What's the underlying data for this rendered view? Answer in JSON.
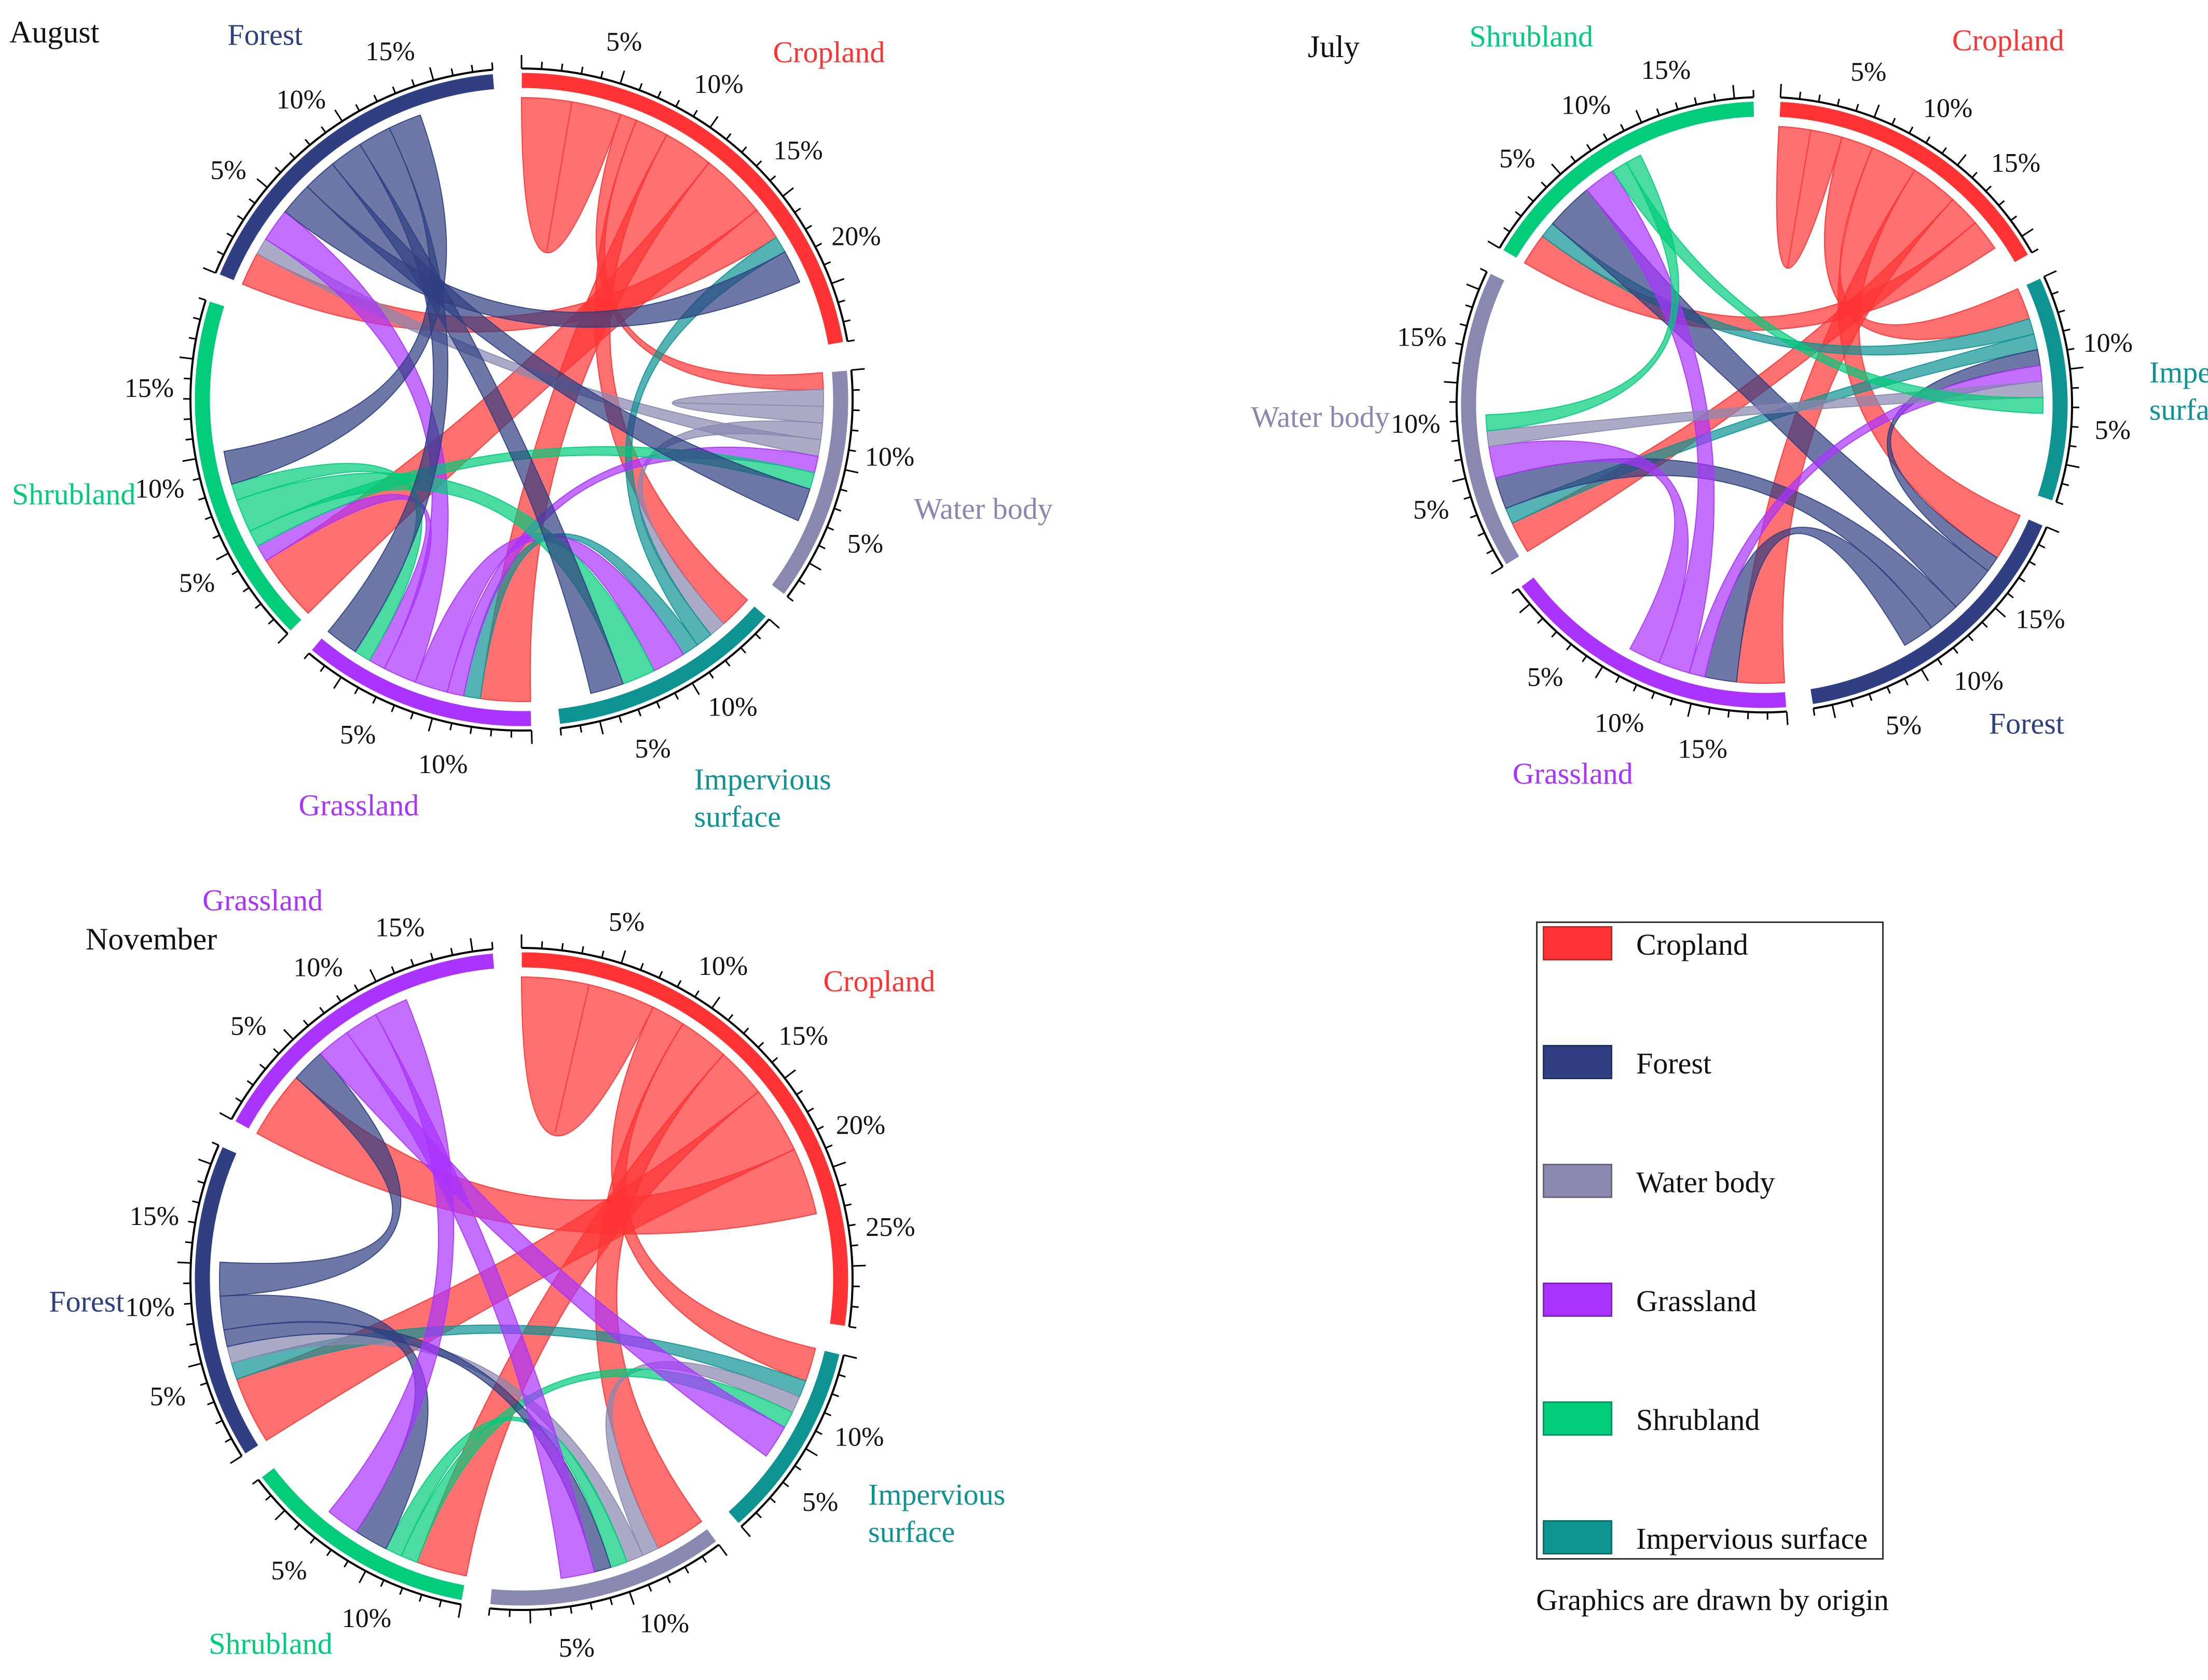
{
  "chart_data": [
    {
      "type": "chord",
      "title": "August",
      "categories": [
        {
          "name": "Cropland",
          "label_lines": [
            "Cropland"
          ],
          "color": "#ff3333",
          "total_pct": 23,
          "ticks": [
            "5%",
            "10%",
            "15%",
            "20%"
          ]
        },
        {
          "name": "Water body",
          "label_lines": [
            "Water body"
          ],
          "color": "#8888b0",
          "total_pct": 12,
          "ticks": [
            "10%",
            "5%"
          ]
        },
        {
          "name": "Impervious surface",
          "label_lines": [
            "Impervious",
            "surface"
          ],
          "color": "#0e9393",
          "total_pct": 12,
          "ticks": [
            "10%",
            "5%"
          ]
        },
        {
          "name": "Grassland",
          "label_lines": [
            "Grassland"
          ],
          "color": "#aa33ff",
          "total_pct": 12,
          "ticks": [
            "10%",
            "5%"
          ]
        },
        {
          "name": "Shrubland",
          "label_lines": [
            "Shrubland"
          ],
          "color": "#00cc7a",
          "total_pct": 18,
          "ticks": [
            "5%",
            "10%",
            "15%"
          ]
        },
        {
          "name": "Forest",
          "label_lines": [
            "Forest"
          ],
          "color": "#2f3f82",
          "total_pct": 18,
          "ticks": [
            "5%",
            "10%",
            "15%"
          ]
        }
      ],
      "flows": [
        {
          "from": "Cropland",
          "to": "Cropland",
          "value": 3
        },
        {
          "from": "Cropland",
          "to": "Water body",
          "value": 1
        },
        {
          "from": "Cropland",
          "to": "Impervious surface",
          "value": 2
        },
        {
          "from": "Cropland",
          "to": "Grassland",
          "value": 3
        },
        {
          "from": "Cropland",
          "to": "Shrubland",
          "value": 4
        },
        {
          "from": "Cropland",
          "to": "Forest",
          "value": 2
        },
        {
          "from": "Water body",
          "to": "Water body",
          "value": 1
        },
        {
          "from": "Water body",
          "to": "Impervious surface",
          "value": 1
        },
        {
          "from": "Water body",
          "to": "Forest",
          "value": 1
        },
        {
          "from": "Impervious surface",
          "to": "Cropland",
          "value": 1
        },
        {
          "from": "Impervious surface",
          "to": "Grassland",
          "value": 1
        },
        {
          "from": "Grassland",
          "to": "Water body",
          "value": 1
        },
        {
          "from": "Grassland",
          "to": "Impervious surface",
          "value": 2
        },
        {
          "from": "Grassland",
          "to": "Forest",
          "value": 2
        },
        {
          "from": "Grassland",
          "to": "Shrubland",
          "value": 1
        },
        {
          "from": "Shrubland",
          "to": "Water body",
          "value": 1
        },
        {
          "from": "Shrubland",
          "to": "Impervious surface",
          "value": 2
        },
        {
          "from": "Shrubland",
          "to": "Grassland",
          "value": 1
        },
        {
          "from": "Forest",
          "to": "Cropland",
          "value": 2
        },
        {
          "from": "Forest",
          "to": "Water body",
          "value": 2
        },
        {
          "from": "Forest",
          "to": "Impervious surface",
          "value": 2
        },
        {
          "from": "Forest",
          "to": "Grassland",
          "value": 2
        },
        {
          "from": "Forest",
          "to": "Shrubland",
          "value": 2
        }
      ]
    },
    {
      "type": "chord",
      "title": "July",
      "categories": [
        {
          "name": "Cropland",
          "label_lines": [
            "Cropland"
          ],
          "color": "#ff3333",
          "total_pct": 16,
          "ticks": [
            "5%",
            "10%",
            "15%"
          ]
        },
        {
          "name": "Impervious surface",
          "label_lines": [
            "Impervious",
            "surface"
          ],
          "color": "#0e9393",
          "total_pct": 12,
          "ticks": [
            "10%",
            "5%"
          ]
        },
        {
          "name": "Forest",
          "label_lines": [
            "Forest"
          ],
          "color": "#2f3f82",
          "total_pct": 16,
          "ticks": [
            "15%",
            "10%",
            "5%"
          ]
        },
        {
          "name": "Grassland",
          "label_lines": [
            "Grassland"
          ],
          "color": "#aa33ff",
          "total_pct": 16,
          "ticks": [
            "15%",
            "10%",
            "5%"
          ]
        },
        {
          "name": "Water body",
          "label_lines": [
            "Water body"
          ],
          "color": "#8888b0",
          "total_pct": 16,
          "ticks": [
            "5%",
            "10%",
            "15%"
          ]
        },
        {
          "name": "Shrubland",
          "label_lines": [
            "Shrubland"
          ],
          "color": "#00cc7a",
          "total_pct": 16,
          "ticks": [
            "5%",
            "10%",
            "15%"
          ]
        }
      ],
      "flows": [
        {
          "from": "Cropland",
          "to": "Cropland",
          "value": 2
        },
        {
          "from": "Cropland",
          "to": "Impervious surface",
          "value": 2
        },
        {
          "from": "Cropland",
          "to": "Forest",
          "value": 3
        },
        {
          "from": "Cropland",
          "to": "Grassland",
          "value": 3
        },
        {
          "from": "Cropland",
          "to": "Water body",
          "value": 2
        },
        {
          "from": "Cropland",
          "to": "Shrubland",
          "value": 2
        },
        {
          "from": "Impervious surface",
          "to": "Shrubland",
          "value": 1
        },
        {
          "from": "Impervious surface",
          "to": "Water body",
          "value": 1
        },
        {
          "from": "Forest",
          "to": "Impervious surface",
          "value": 1
        },
        {
          "from": "Forest",
          "to": "Shrubland",
          "value": 3
        },
        {
          "from": "Forest",
          "to": "Water body",
          "value": 2
        },
        {
          "from": "Forest",
          "to": "Grassland",
          "value": 2
        },
        {
          "from": "Grassland",
          "to": "Impervious surface",
          "value": 1
        },
        {
          "from": "Grassland",
          "to": "Shrubland",
          "value": 2
        },
        {
          "from": "Grassland",
          "to": "Water body",
          "value": 2
        },
        {
          "from": "Water body",
          "to": "Impervious surface",
          "value": 1
        },
        {
          "from": "Shrubland",
          "to": "Impervious surface",
          "value": 1
        },
        {
          "from": "Shrubland",
          "to": "Water body",
          "value": 1
        }
      ]
    },
    {
      "type": "chord",
      "title": "November",
      "categories": [
        {
          "name": "Cropland",
          "label_lines": [
            "Cropland"
          ],
          "color": "#ff3333",
          "total_pct": 28,
          "ticks": [
            "5%",
            "10%",
            "15%",
            "20%",
            "25%"
          ]
        },
        {
          "name": "Impervious surface",
          "label_lines": [
            "Impervious",
            "surface"
          ],
          "color": "#0e9393",
          "total_pct": 10,
          "ticks": [
            "10%",
            "5%"
          ]
        },
        {
          "name": "Water body",
          "label_lines": [
            "Water body"
          ],
          "color": "#8888b0",
          "total_pct": 12,
          "ticks": [
            "10%",
            "5%"
          ]
        },
        {
          "name": "Shrubland",
          "label_lines": [
            "Shrubland"
          ],
          "color": "#00cc7a",
          "total_pct": 12,
          "ticks": [
            "10%",
            "5%"
          ]
        },
        {
          "name": "Forest",
          "label_lines": [
            "Forest"
          ],
          "color": "#2f3f82",
          "total_pct": 16,
          "ticks": [
            "5%",
            "10%",
            "15%"
          ]
        },
        {
          "name": "Grassland",
          "label_lines": [
            "Grassland"
          ],
          "color": "#aa33ff",
          "total_pct": 16,
          "ticks": [
            "5%",
            "10%",
            "15%"
          ]
        }
      ],
      "flows": [
        {
          "from": "Cropland",
          "to": "Cropland",
          "value": 4
        },
        {
          "from": "Cropland",
          "to": "Impervious surface",
          "value": 2
        },
        {
          "from": "Cropland",
          "to": "Water body",
          "value": 3
        },
        {
          "from": "Cropland",
          "to": "Shrubland",
          "value": 3
        },
        {
          "from": "Cropland",
          "to": "Forest",
          "value": 4
        },
        {
          "from": "Cropland",
          "to": "Grassland",
          "value": 4
        },
        {
          "from": "Impervious surface",
          "to": "Forest",
          "value": 1
        },
        {
          "from": "Water body",
          "to": "Impervious surface",
          "value": 1
        },
        {
          "from": "Water body",
          "to": "Forest",
          "value": 1
        },
        {
          "from": "Shrubland",
          "to": "Impervious surface",
          "value": 1
        },
        {
          "from": "Shrubland",
          "to": "Water body",
          "value": 1
        },
        {
          "from": "Forest",
          "to": "Water body",
          "value": 1
        },
        {
          "from": "Forest",
          "to": "Shrubland",
          "value": 2
        },
        {
          "from": "Forest",
          "to": "Grassland",
          "value": 2
        },
        {
          "from": "Grassland",
          "to": "Impervious surface",
          "value": 2
        },
        {
          "from": "Grassland",
          "to": "Water body",
          "value": 2
        },
        {
          "from": "Grassland",
          "to": "Shrubland",
          "value": 2
        }
      ]
    }
  ],
  "legend": {
    "items": [
      {
        "label": "Cropland",
        "color": "#ff3333"
      },
      {
        "label": "Forest",
        "color": "#2f3f82"
      },
      {
        "label": "Water body",
        "color": "#8888b0"
      },
      {
        "label": "Grassland",
        "color": "#aa33ff"
      },
      {
        "label": "Shrubland",
        "color": "#00cc7a"
      },
      {
        "label": "Impervious surface",
        "color": "#0e9393"
      }
    ],
    "note": "Graphics are drawn by origin"
  }
}
